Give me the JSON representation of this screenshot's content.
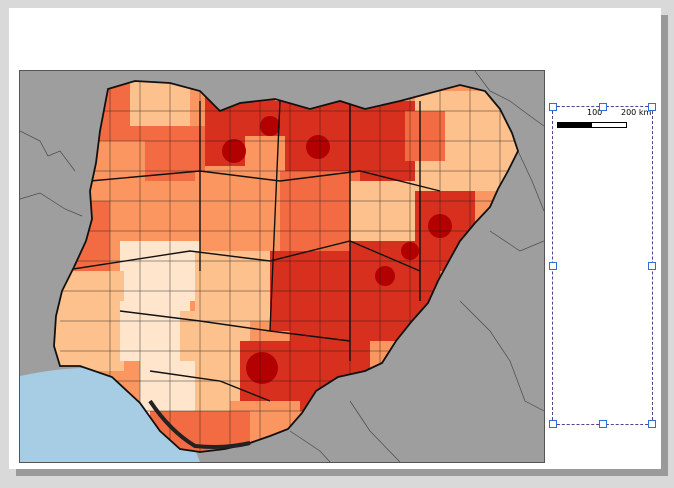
{
  "map": {
    "colors": {
      "background": "#9e9e9e",
      "sea": "#a6cde3",
      "class_1": "#fee5cc",
      "class_2": "#fdc18e",
      "class_3": "#fc9660",
      "class_4": "#f26b43",
      "class_5": "#d7301f",
      "class_6": "#b30000",
      "boundary": "#1a1a1a"
    }
  },
  "scale_bar": {
    "label_mid": "100",
    "label_end": "200 km"
  }
}
